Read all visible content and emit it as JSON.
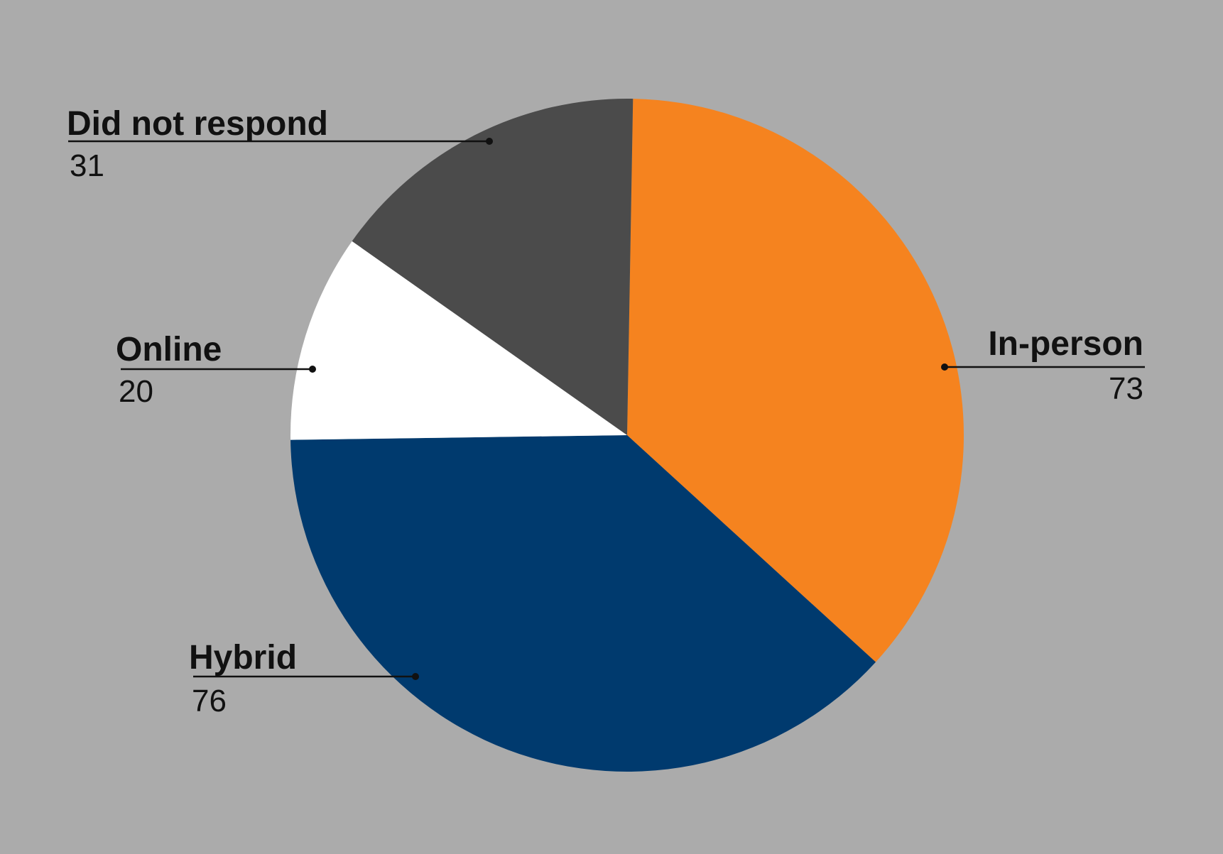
{
  "chart_data": {
    "type": "pie",
    "title": "",
    "slices": [
      {
        "label": "In-person",
        "value": 73,
        "color": "#f5831f"
      },
      {
        "label": "Hybrid",
        "value": 76,
        "color": "#003a6e"
      },
      {
        "label": "Online",
        "value": 20,
        "color": "#ffffff"
      },
      {
        "label": "Did not respond",
        "value": 31,
        "color": "#4b4b4b"
      }
    ],
    "start_angle_deg": 1,
    "direction": "clockwise",
    "legend": "none",
    "background_color": "#ababab"
  }
}
